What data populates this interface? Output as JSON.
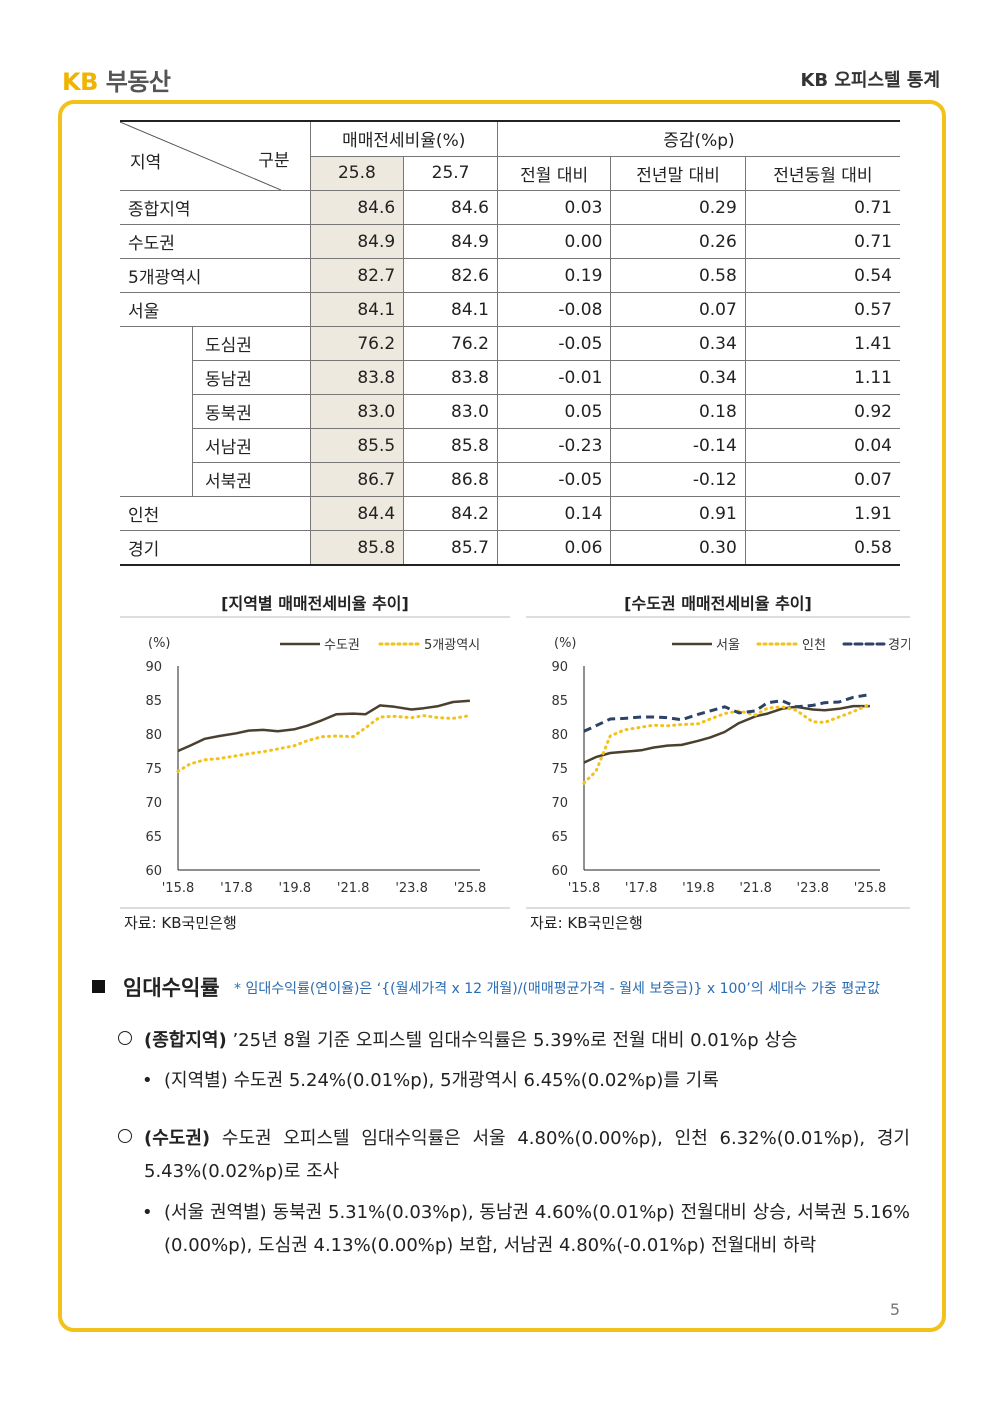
{
  "header": {
    "logo_kb": "KB",
    "logo_brand": "부동산",
    "title": "KB 오피스텔 통계"
  },
  "table": {
    "corner_region": "지역",
    "corner_type": "구분",
    "group1": "매매전세비율(%)",
    "group2": "증감(%p)",
    "cols": [
      "25.8",
      "25.7",
      "전월 대비",
      "전년말 대비",
      "전년동월 대비"
    ],
    "rows": [
      {
        "region": "종합지역",
        "sub": "",
        "v": [
          "84.6",
          "84.6",
          "0.03",
          "0.29",
          "0.71"
        ]
      },
      {
        "region": "수도권",
        "sub": "",
        "v": [
          "84.9",
          "84.9",
          "0.00",
          "0.26",
          "0.71"
        ]
      },
      {
        "region": "5개광역시",
        "sub": "",
        "v": [
          "82.7",
          "82.6",
          "0.19",
          "0.58",
          "0.54"
        ]
      },
      {
        "region": "서울",
        "sub": "",
        "v": [
          "84.1",
          "84.1",
          "-0.08",
          "0.07",
          "0.57"
        ]
      },
      {
        "region": "",
        "sub": "도심권",
        "v": [
          "76.2",
          "76.2",
          "-0.05",
          "0.34",
          "1.41"
        ]
      },
      {
        "region": "",
        "sub": "동남권",
        "v": [
          "83.8",
          "83.8",
          "-0.01",
          "0.34",
          "1.11"
        ]
      },
      {
        "region": "",
        "sub": "동북권",
        "v": [
          "83.0",
          "83.0",
          "0.05",
          "0.18",
          "0.92"
        ]
      },
      {
        "region": "",
        "sub": "서남권",
        "v": [
          "85.5",
          "85.8",
          "-0.23",
          "-0.14",
          "0.04"
        ]
      },
      {
        "region": "",
        "sub": "서북권",
        "v": [
          "86.7",
          "86.8",
          "-0.05",
          "-0.12",
          "0.07"
        ]
      },
      {
        "region": "인천",
        "sub": "",
        "v": [
          "84.4",
          "84.2",
          "0.14",
          "0.91",
          "1.91"
        ]
      },
      {
        "region": "경기",
        "sub": "",
        "v": [
          "85.8",
          "85.7",
          "0.06",
          "0.30",
          "0.58"
        ]
      }
    ]
  },
  "chart_data": [
    {
      "type": "line",
      "title": "[지역별 매매전세비율 추이]",
      "ylabel": "(%)",
      "ylim": [
        60,
        90
      ],
      "yticks": [
        "90",
        "85",
        "80",
        "75",
        "70",
        "65",
        "60"
      ],
      "xticks": [
        "'15.8",
        "'17.8",
        "'19.8",
        "'21.8",
        "'23.8",
        "'25.8"
      ],
      "xrange": [
        2015.583,
        2025.583
      ],
      "legend": "top-right",
      "series": [
        {
          "name": "수도권",
          "color": "#4a4030",
          "style": "solid",
          "x": [
            2015.58,
            2016.0,
            2016.5,
            2017.0,
            2017.58,
            2018.0,
            2018.5,
            2019.0,
            2019.58,
            2020.0,
            2020.5,
            2021.0,
            2021.58,
            2022.0,
            2022.5,
            2023.0,
            2023.58,
            2024.0,
            2024.5,
            2025.0,
            2025.58
          ],
          "y": [
            77.5,
            78.3,
            79.3,
            79.7,
            80.1,
            80.5,
            80.6,
            80.4,
            80.7,
            81.2,
            82.0,
            82.9,
            83.0,
            82.9,
            84.2,
            84.0,
            83.6,
            83.8,
            84.1,
            84.7,
            84.9
          ]
        },
        {
          "name": "5개광역시",
          "color": "#f2c21b",
          "style": "dotted",
          "x": [
            2015.58,
            2016.0,
            2016.5,
            2017.0,
            2017.58,
            2018.0,
            2018.5,
            2019.0,
            2019.58,
            2020.0,
            2020.5,
            2021.0,
            2021.58,
            2022.0,
            2022.5,
            2023.0,
            2023.58,
            2024.0,
            2024.5,
            2025.0,
            2025.58
          ],
          "y": [
            74.5,
            75.6,
            76.2,
            76.4,
            76.8,
            77.1,
            77.4,
            77.8,
            78.3,
            79.0,
            79.6,
            79.7,
            79.6,
            80.9,
            82.5,
            82.6,
            82.4,
            82.7,
            82.4,
            82.3,
            82.7
          ]
        }
      ],
      "source": "자료: KB국민은행"
    },
    {
      "type": "line",
      "title": "[수도권 매매전세비율 추이]",
      "ylabel": "(%)",
      "ylim": [
        60,
        90
      ],
      "yticks": [
        "90",
        "85",
        "80",
        "75",
        "70",
        "65",
        "60"
      ],
      "xticks": [
        "'15.8",
        "'17.8",
        "'19.8",
        "'21.8",
        "'23.8",
        "'25.8"
      ],
      "xrange": [
        2015.583,
        2025.583
      ],
      "legend": "top-right",
      "series": [
        {
          "name": "서울",
          "color": "#4a4030",
          "style": "solid",
          "x": [
            2015.58,
            2016.0,
            2016.5,
            2017.0,
            2017.58,
            2018.0,
            2018.5,
            2019.0,
            2019.58,
            2020.0,
            2020.5,
            2021.0,
            2021.58,
            2022.0,
            2022.5,
            2023.0,
            2023.58,
            2024.0,
            2024.5,
            2025.0,
            2025.58
          ],
          "y": [
            75.8,
            76.6,
            77.2,
            77.4,
            77.6,
            78.0,
            78.3,
            78.4,
            79.0,
            79.5,
            80.3,
            81.6,
            82.6,
            83.0,
            83.7,
            84.0,
            83.6,
            83.5,
            83.7,
            84.1,
            84.1
          ]
        },
        {
          "name": "인천",
          "color": "#f2c21b",
          "style": "dotted",
          "x": [
            2015.58,
            2016.0,
            2016.5,
            2017.0,
            2017.58,
            2018.0,
            2018.5,
            2019.0,
            2019.58,
            2020.0,
            2020.5,
            2021.0,
            2021.58,
            2022.0,
            2022.5,
            2023.0,
            2023.58,
            2024.0,
            2024.5,
            2025.0,
            2025.58
          ],
          "y": [
            72.8,
            74.5,
            79.7,
            80.6,
            81.0,
            81.3,
            81.2,
            81.4,
            81.5,
            82.2,
            83.0,
            83.4,
            82.8,
            83.8,
            84.0,
            83.5,
            81.8,
            81.7,
            82.5,
            83.3,
            84.4
          ]
        },
        {
          "name": "경기",
          "color": "#2c4266",
          "style": "dashed",
          "x": [
            2015.58,
            2016.0,
            2016.5,
            2017.0,
            2017.58,
            2018.0,
            2018.5,
            2019.0,
            2019.58,
            2020.0,
            2020.5,
            2021.0,
            2021.58,
            2022.0,
            2022.5,
            2023.0,
            2023.58,
            2024.0,
            2024.5,
            2025.0,
            2025.58
          ],
          "y": [
            80.4,
            81.2,
            82.2,
            82.3,
            82.5,
            82.5,
            82.4,
            82.1,
            82.9,
            83.4,
            84.0,
            83.1,
            83.4,
            84.6,
            84.9,
            84.0,
            84.2,
            84.6,
            84.7,
            85.4,
            85.8
          ]
        }
      ],
      "source": "자료: KB국민은행"
    }
  ],
  "section": {
    "title": "임대수익률",
    "note": "* 임대수익률(연이율)은 ‘{(월세가격 x 12 개월)/(매매평균가격 - 월세 보증금)} x 100’의 세대수 가중 평균값",
    "p1_label": "(종합지역)",
    "p1_text": "’25년 8월 기준 오피스텔 임대수익률은 5.39%로 전월 대비 0.01%p 상승",
    "b1_text": "(지역별) 수도권 5.24%(0.01%p), 5개광역시 6.45%(0.02%p)를 기록",
    "p2_label": "(수도권)",
    "p2_text": "수도권 오피스텔 임대수익률은 서울 4.80%(0.00%p), 인천 6.32%(0.01%p), 경기 5.43%(0.02%p)로 조사",
    "b2_text": "(서울 권역별) 동북권 5.31%(0.03%p), 동남권 4.60%(0.01%p) 전월대비 상승, 서북권 5.16%(0.00%p), 도심권 4.13%(0.00%p) 보합, 서남권 4.80%(-0.01%p) 전월대비 하락"
  },
  "page_number": "5"
}
